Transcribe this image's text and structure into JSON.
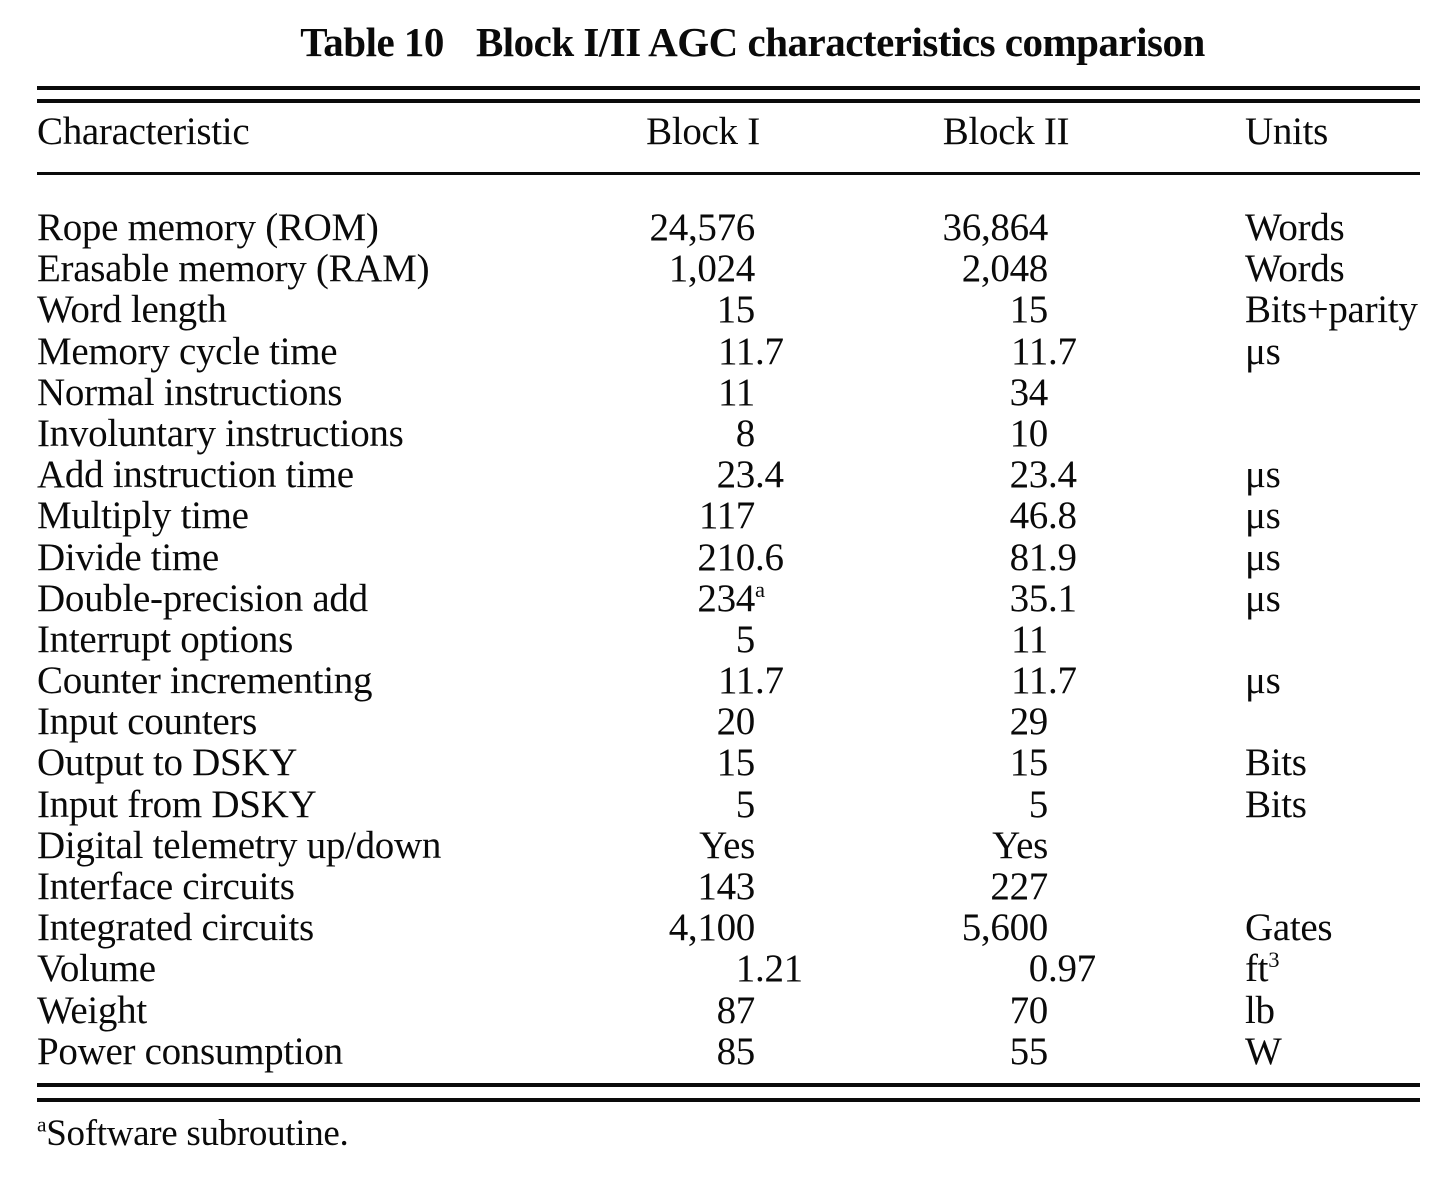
{
  "title": {
    "label": "Table 10",
    "text": "Block I/II AGC characteristics comparison"
  },
  "table": {
    "headers": {
      "characteristic": "Characteristic",
      "block1": "Block I",
      "block2": "Block II",
      "units": "Units"
    },
    "rows": [
      {
        "label": "Rope memory (ROM)",
        "b1int": "24,576",
        "b1sup": "",
        "b1frac": "",
        "b2int": "36,864",
        "b2frac": "",
        "unit": "Words",
        "unitsup": ""
      },
      {
        "label": "Erasable memory (RAM)",
        "b1int": "1,024",
        "b1sup": "",
        "b1frac": "",
        "b2int": "2,048",
        "b2frac": "",
        "unit": "Words",
        "unitsup": ""
      },
      {
        "label": "Word length",
        "b1int": "15",
        "b1sup": "",
        "b1frac": "",
        "b2int": "15",
        "b2frac": "",
        "unit": "Bits+parity",
        "unitsup": ""
      },
      {
        "label": "Memory cycle time",
        "b1int": "11",
        "b1sup": "",
        "b1frac": ".7",
        "b2int": "11",
        "b2frac": ".7",
        "unit": "μs",
        "unitsup": ""
      },
      {
        "label": "Normal instructions",
        "b1int": "11",
        "b1sup": "",
        "b1frac": "",
        "b2int": "34",
        "b2frac": "",
        "unit": "",
        "unitsup": ""
      },
      {
        "label": "Involuntary instructions",
        "b1int": "8",
        "b1sup": "",
        "b1frac": "",
        "b2int": "10",
        "b2frac": "",
        "unit": "",
        "unitsup": ""
      },
      {
        "label": "Add instruction time",
        "b1int": "23",
        "b1sup": "",
        "b1frac": ".4",
        "b2int": "23",
        "b2frac": ".4",
        "unit": "μs",
        "unitsup": ""
      },
      {
        "label": "Multiply time",
        "b1int": "117",
        "b1sup": "",
        "b1frac": "",
        "b2int": "46",
        "b2frac": ".8",
        "unit": "μs",
        "unitsup": ""
      },
      {
        "label": "Divide time",
        "b1int": "210",
        "b1sup": "",
        "b1frac": ".6",
        "b2int": "81",
        "b2frac": ".9",
        "unit": "μs",
        "unitsup": ""
      },
      {
        "label": "Double-precision add",
        "b1int": "234",
        "b1sup": "a",
        "b1frac": "",
        "b2int": "35",
        "b2frac": ".1",
        "unit": "μs",
        "unitsup": ""
      },
      {
        "label": "Interrupt options",
        "b1int": "5",
        "b1sup": "",
        "b1frac": "",
        "b2int": "11",
        "b2frac": "",
        "unit": "",
        "unitsup": ""
      },
      {
        "label": "Counter incrementing",
        "b1int": "11",
        "b1sup": "",
        "b1frac": ".7",
        "b2int": "11",
        "b2frac": ".7",
        "unit": "μs",
        "unitsup": ""
      },
      {
        "label": "Input counters",
        "b1int": "20",
        "b1sup": "",
        "b1frac": "",
        "b2int": "29",
        "b2frac": "",
        "unit": "",
        "unitsup": ""
      },
      {
        "label": "Output to DSKY",
        "b1int": "15",
        "b1sup": "",
        "b1frac": "",
        "b2int": "15",
        "b2frac": "",
        "unit": "Bits",
        "unitsup": ""
      },
      {
        "label": "Input from DSKY",
        "b1int": "5",
        "b1sup": "",
        "b1frac": "",
        "b2int": "5",
        "b2frac": "",
        "unit": "Bits",
        "unitsup": ""
      },
      {
        "label": "Digital telemetry up/down",
        "b1int": "Yes",
        "b1sup": "",
        "b1frac": "",
        "b2int": "Yes",
        "b2frac": "",
        "unit": "",
        "unitsup": ""
      },
      {
        "label": "Interface circuits",
        "b1int": "143",
        "b1sup": "",
        "b1frac": "",
        "b2int": "227",
        "b2frac": "",
        "unit": "",
        "unitsup": ""
      },
      {
        "label": "Integrated circuits",
        "b1int": "4,100",
        "b1sup": "",
        "b1frac": "",
        "b2int": "5,600",
        "b2frac": "",
        "unit": "Gates",
        "unitsup": ""
      },
      {
        "label": "Volume",
        "b1int": "1",
        "b1sup": "",
        "b1frac": ".21",
        "b2int": "0",
        "b2frac": ".97",
        "unit": "ft",
        "unitsup": "3"
      },
      {
        "label": "Weight",
        "b1int": "87",
        "b1sup": "",
        "b1frac": "",
        "b2int": "70",
        "b2frac": "",
        "unit": "lb",
        "unitsup": ""
      },
      {
        "label": "Power consumption",
        "b1int": "85",
        "b1sup": "",
        "b1frac": "",
        "b2int": "55",
        "b2frac": "",
        "unit": "W",
        "unitsup": ""
      }
    ]
  },
  "footnote": {
    "marker": "a",
    "text": "Software subroutine."
  }
}
